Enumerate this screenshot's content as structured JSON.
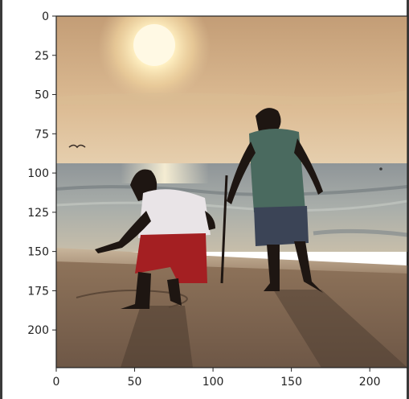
{
  "figure": {
    "kind": "image-plot",
    "subject": "Silhouettes of two children playing in the sand on a beach at sunset",
    "colors": {
      "sky_top": "#c9a47d",
      "sky_mid": "#e2c59b",
      "sun": "#fff6d2",
      "sea": "#9aa5a8",
      "sand": "#7d6450",
      "silhouette": "#1e1612",
      "shirt_left": "#e9e4e7",
      "shorts_left": "#a41f22",
      "shirt_right": "#4a6a5f",
      "shorts_right": "#3b4456"
    }
  },
  "chart_data": {
    "type": "image",
    "title": "",
    "xlabel": "",
    "ylabel": "",
    "xlim": [
      0,
      224
    ],
    "ylim": [
      224,
      0
    ],
    "x_ticks": [
      0,
      50,
      100,
      150,
      200
    ],
    "x_tick_labels": [
      "0",
      "50",
      "100",
      "150",
      "200"
    ],
    "y_ticks": [
      0,
      25,
      50,
      75,
      100,
      125,
      150,
      175,
      200
    ],
    "y_tick_labels": [
      "0",
      "25",
      "50",
      "75",
      "100",
      "125",
      "150",
      "175",
      "200"
    ],
    "grid": false
  }
}
